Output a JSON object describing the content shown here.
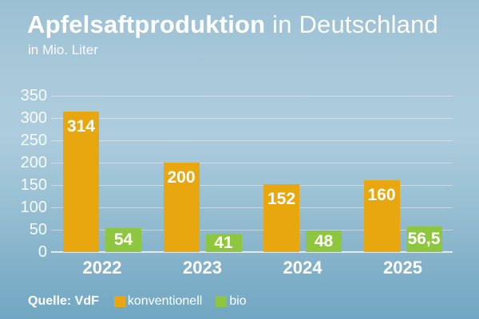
{
  "header": {
    "title_bold": "Apfelsaftproduktion",
    "title_regular": " in Deutschland",
    "subtitle": "in Mio. Liter"
  },
  "source": {
    "label": "Quelle: VdF"
  },
  "legend": [
    {
      "label": "konventionell",
      "color": "#e9a70f"
    },
    {
      "label": "bio",
      "color": "#8fc63f"
    }
  ],
  "colors": {
    "background_top": "#9bbfd4",
    "background_bottom": "#71a7c3",
    "text": "#ffffff",
    "gridline": "rgba(255,255,255,0.42)",
    "konventionell": "#e9a70f",
    "bio": "#8fc63f"
  },
  "chart_data": {
    "type": "bar",
    "title": "Apfelsaftproduktion in Deutschland",
    "subtitle": "in Mio. Liter",
    "categories": [
      "2022",
      "2023",
      "2024",
      "2025"
    ],
    "series": [
      {
        "name": "konventionell",
        "color": "#e9a70f",
        "values": [
          314,
          200,
          152,
          160
        ],
        "labels": [
          "314",
          "200",
          "152",
          "160"
        ]
      },
      {
        "name": "bio",
        "color": "#8fc63f",
        "values": [
          54,
          41,
          48,
          56.5
        ],
        "labels": [
          "54",
          "41",
          "48",
          "56,5"
        ]
      }
    ],
    "xlabel": "",
    "ylabel": "in Mio. Liter",
    "ylim": [
      0,
      350
    ],
    "yticks": [
      0,
      50,
      100,
      150,
      200,
      250,
      300,
      350
    ],
    "grid": true,
    "legend_position": "bottom",
    "source": "Quelle: VdF"
  }
}
